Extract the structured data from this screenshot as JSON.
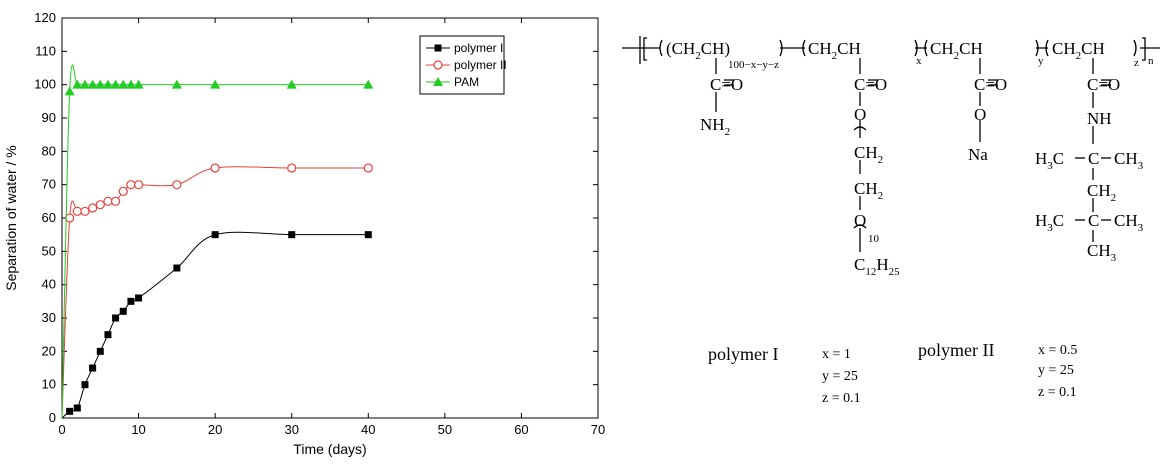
{
  "chart_data": {
    "type": "line",
    "xlabel": "Time (days)",
    "ylabel": "Separation of water / %",
    "xlim": [
      0,
      70
    ],
    "ylim": [
      0,
      120
    ],
    "xticks": [
      0,
      10,
      20,
      30,
      40,
      50,
      60,
      70
    ],
    "yticks": [
      0,
      10,
      20,
      30,
      40,
      50,
      60,
      70,
      80,
      90,
      100,
      110,
      120
    ],
    "grid": false,
    "legend_position": "top-right",
    "series": [
      {
        "name": "polymer I",
        "color": "#000000",
        "marker": "filled-square",
        "x": [
          0,
          1,
          2,
          3,
          4,
          5,
          6,
          7,
          8,
          9,
          10,
          15,
          20,
          30,
          40
        ],
        "y": [
          0,
          2,
          3,
          10,
          15,
          20,
          25,
          30,
          32,
          35,
          36,
          45,
          55,
          55,
          55
        ]
      },
      {
        "name": "polymer II",
        "color": "#e8413c",
        "marker": "open-circle",
        "x": [
          0,
          1,
          2,
          3,
          4,
          5,
          6,
          7,
          8,
          9,
          10,
          15,
          20,
          30,
          40
        ],
        "y": [
          0,
          60,
          62,
          62,
          63,
          64,
          65,
          65,
          68,
          70,
          70,
          70,
          75,
          75,
          75
        ]
      },
      {
        "name": "PAM",
        "color": "#22cc22",
        "marker": "filled-triangle",
        "x": [
          0,
          1,
          2,
          3,
          4,
          5,
          6,
          7,
          8,
          9,
          10,
          15,
          20,
          30,
          40
        ],
        "y": [
          0,
          98,
          100,
          100,
          100,
          100,
          100,
          100,
          100,
          100,
          100,
          100,
          100,
          100,
          100
        ]
      }
    ]
  },
  "structure": {
    "backbone": {
      "unit_label": "CH",
      "sub_2": "2",
      "sub_a": "100−x−y−z",
      "sub_x": "x",
      "sub_y": "y",
      "sub_z": "z",
      "sub_n": "n"
    },
    "carbonyl": "C=O",
    "amide1": "NH",
    "amide1_sub": "2",
    "ester_o": "O",
    "sidechain_ch2": "CH",
    "peg_sub": "10",
    "tail_c": "C",
    "tail_c_sub": "12",
    "tail_h": "H",
    "tail_h_sub": "25",
    "sodium_o": "O",
    "sodium": "Na",
    "amide4": "NH",
    "h3c": "H",
    "h3c_sub": "3",
    "h3c_c": "C",
    "ch3": "CH",
    "ch3_sub": "3",
    "c": "C"
  },
  "parameters": {
    "polymer1": {
      "name": "polymer I",
      "x": "x = 1",
      "y": "y = 25",
      "z": "z = 0.1"
    },
    "polymer2": {
      "name": "polymer II",
      "x": "x = 0.5",
      "y": "y = 25",
      "z": "z = 0.1"
    }
  }
}
